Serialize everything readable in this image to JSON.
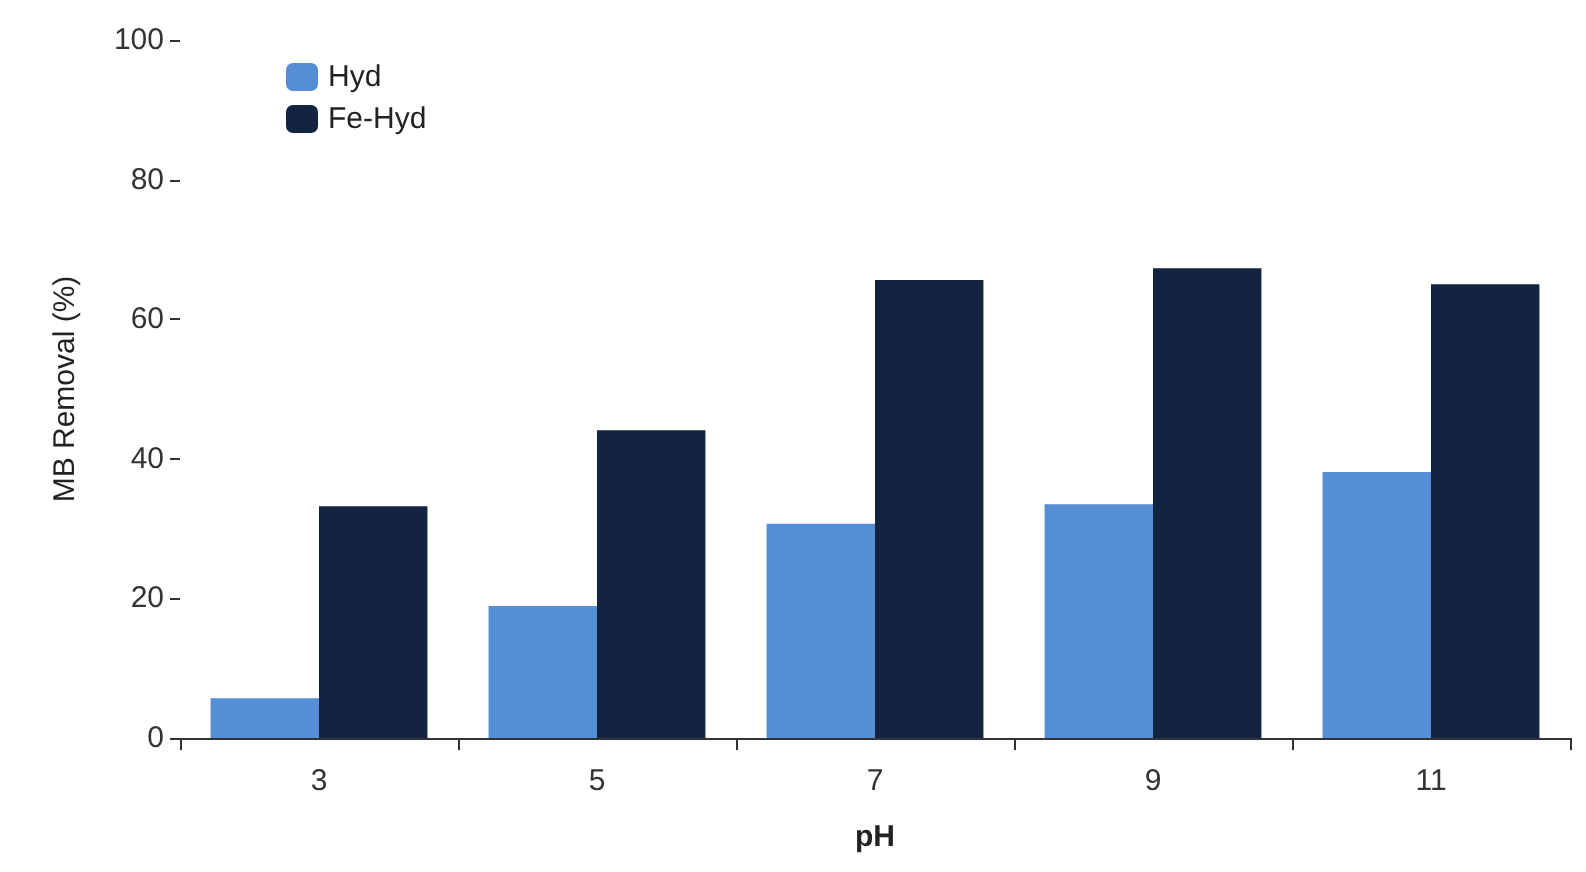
{
  "chart_data": {
    "type": "bar",
    "xlabel": "pH",
    "ylabel": "MB Removal (%)",
    "categories": [
      "3",
      "5",
      "7",
      "9",
      "11"
    ],
    "series": [
      {
        "name": "Hyd",
        "color": "#558ed5",
        "values": [
          5.7,
          18.9,
          30.7,
          33.5,
          38.1
        ]
      },
      {
        "name": "Fe-Hyd",
        "color": "#12243f",
        "values": [
          33.2,
          44.1,
          65.6,
          67.3,
          65.0
        ]
      }
    ],
    "ylim": [
      0,
      100
    ],
    "yticks": [
      0,
      20,
      40,
      60,
      80,
      100
    ],
    "grid": false,
    "legend": "top left"
  }
}
